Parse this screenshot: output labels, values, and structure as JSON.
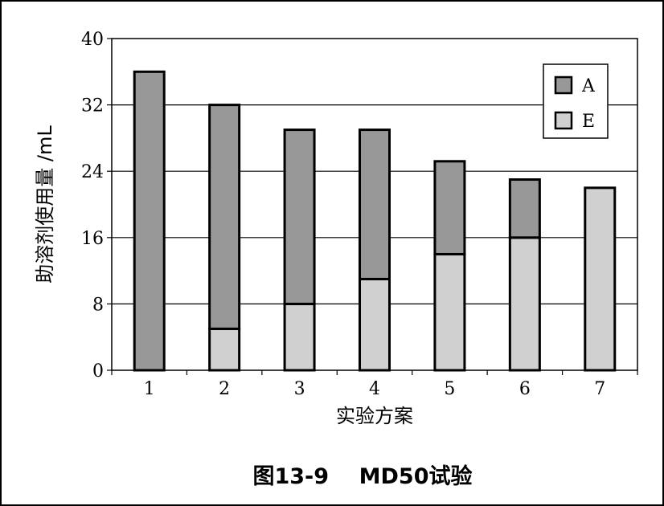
{
  "chart_data": {
    "type": "bar",
    "stacked": true,
    "categories": [
      "1",
      "2",
      "3",
      "4",
      "5",
      "6",
      "7"
    ],
    "series": [
      {
        "name": "E",
        "color": "#d0d0d0",
        "values": [
          0,
          5,
          8,
          11,
          14,
          16,
          22
        ]
      },
      {
        "name": "A",
        "color": "#989898",
        "values": [
          36,
          27,
          21,
          18,
          11.2,
          7,
          0
        ]
      }
    ],
    "xlabel": "实验方案",
    "ylabel": "助溶剂使用量 /mL",
    "ylim": [
      0,
      40
    ],
    "yticks": [
      0,
      8,
      16,
      24,
      32,
      40
    ],
    "grid": true,
    "legend_position": "top-right",
    "legend_order": [
      "A",
      "E"
    ],
    "caption": "图13-9    MD50试验"
  }
}
